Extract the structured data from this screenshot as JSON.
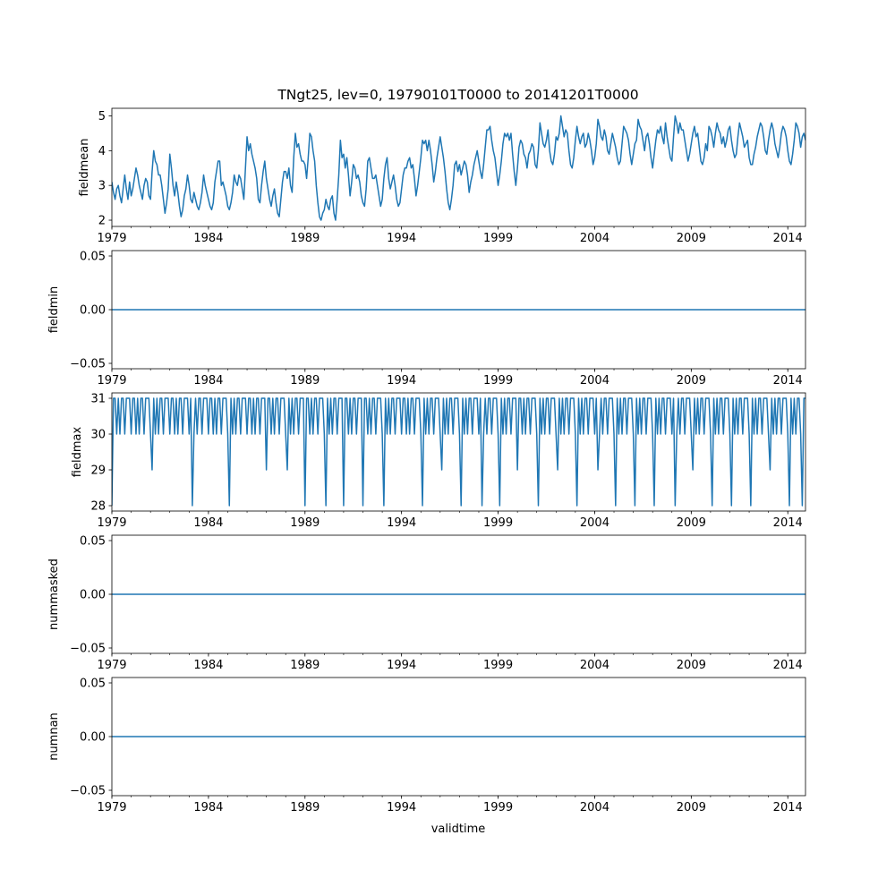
{
  "figure_title": "TNgt25, lev=0, 19790101T0000 to 20141201T0000",
  "xlabel": "validtime",
  "line_color": "#1f77b4",
  "x_ticks": [
    {
      "year": 1979,
      "label": "1979"
    },
    {
      "year": 1984,
      "label": "1984"
    },
    {
      "year": 1989,
      "label": "1989"
    },
    {
      "year": 1994,
      "label": "1994"
    },
    {
      "year": 1999,
      "label": "1999"
    },
    {
      "year": 2004,
      "label": "2004"
    },
    {
      "year": 2009,
      "label": "2009"
    },
    {
      "year": 2014,
      "label": "2014"
    }
  ],
  "chart_data": [
    {
      "type": "line",
      "ylabel": "fieldmean",
      "xlim": [
        "1979-01",
        "2014-12"
      ],
      "ylim": [
        1.82,
        5.22
      ],
      "yticks": [
        2,
        3,
        4,
        5
      ],
      "ytick_labels": [
        "2",
        "3",
        "4",
        "5"
      ],
      "series": [
        {
          "name": "fieldmean",
          "yearly_values": [
            [
              3.1,
              2.8,
              2.6,
              2.9,
              3.0,
              2.7,
              2.5,
              2.9,
              3.3,
              2.9,
              2.6,
              3.1
            ],
            [
              2.7,
              2.9,
              3.2,
              3.5,
              3.3,
              3.0,
              2.8,
              2.6,
              3.0,
              3.2,
              3.1,
              2.7
            ],
            [
              2.6,
              3.4,
              4.0,
              3.7,
              3.6,
              3.3,
              3.3,
              3.0,
              2.6,
              2.2,
              2.5,
              2.9
            ],
            [
              3.9,
              3.5,
              3.0,
              2.7,
              3.1,
              2.8,
              2.4,
              2.1,
              2.3,
              2.7,
              2.9,
              3.3
            ],
            [
              3.0,
              2.6,
              2.5,
              2.8,
              2.6,
              2.4,
              2.3,
              2.5,
              2.8,
              3.3,
              3.0,
              2.8
            ],
            [
              2.6,
              2.4,
              2.3,
              2.5,
              3.1,
              3.4,
              3.7,
              3.7,
              3.0,
              3.1,
              2.9,
              2.7
            ],
            [
              2.4,
              2.3,
              2.5,
              2.8,
              3.3,
              3.1,
              3.0,
              3.3,
              3.2,
              2.9,
              2.6,
              3.5
            ],
            [
              4.4,
              4.0,
              4.2,
              3.9,
              3.7,
              3.5,
              3.2,
              2.6,
              2.5,
              3.0,
              3.4,
              3.7
            ],
            [
              3.2,
              2.9,
              2.6,
              2.4,
              2.7,
              2.9,
              2.5,
              2.2,
              2.1,
              2.6,
              3.1,
              3.4
            ],
            [
              3.4,
              3.2,
              3.5,
              3.0,
              2.8,
              3.8,
              4.5,
              4.1,
              4.2,
              3.9,
              3.7,
              3.7
            ],
            [
              3.6,
              3.2,
              3.8,
              4.5,
              4.4,
              4.0,
              3.7,
              3.0,
              2.5,
              2.1,
              2.0,
              2.2
            ],
            [
              2.3,
              2.6,
              2.4,
              2.3,
              2.6,
              2.7,
              2.2,
              2.0,
              2.6,
              3.3,
              4.3,
              3.8
            ],
            [
              3.9,
              3.5,
              3.8,
              3.3,
              2.7,
              3.1,
              3.6,
              3.5,
              3.2,
              3.3,
              3.1,
              2.7
            ],
            [
              2.5,
              2.4,
              2.9,
              3.7,
              3.8,
              3.5,
              3.2,
              3.2,
              3.3,
              3.0,
              2.7,
              2.4
            ],
            [
              2.6,
              3.2,
              3.6,
              3.8,
              3.2,
              2.9,
              3.1,
              3.3,
              3.0,
              2.6,
              2.4,
              2.5
            ],
            [
              2.9,
              3.3,
              3.5,
              3.5,
              3.7,
              3.8,
              3.5,
              3.6,
              3.2,
              2.7,
              3.0,
              3.4
            ],
            [
              3.8,
              4.3,
              4.2,
              4.3,
              4.0,
              4.3,
              4.0,
              3.6,
              3.1,
              3.4,
              3.8,
              4.1
            ],
            [
              4.4,
              4.1,
              3.8,
              3.4,
              2.9,
              2.5,
              2.3,
              2.6,
              3.0,
              3.6,
              3.7,
              3.4
            ],
            [
              3.6,
              3.3,
              3.5,
              3.7,
              3.6,
              3.3,
              2.8,
              3.1,
              3.3,
              3.6,
              3.8,
              4.0
            ],
            [
              3.7,
              3.4,
              3.2,
              3.6,
              4.1,
              4.6,
              4.6,
              4.7,
              4.3,
              4.0,
              3.8,
              3.4
            ],
            [
              3.0,
              3.3,
              3.7,
              4.2,
              4.5,
              4.4,
              4.5,
              4.3,
              4.5,
              3.9,
              3.4,
              3.0
            ],
            [
              3.5,
              4.1,
              4.3,
              4.2,
              3.9,
              3.8,
              3.5,
              3.9,
              4.0,
              4.2,
              4.1,
              3.6
            ],
            [
              3.5,
              4.0,
              4.8,
              4.5,
              4.2,
              4.1,
              4.3,
              4.6,
              4.0,
              3.7,
              3.6,
              3.9
            ],
            [
              4.4,
              4.3,
              4.5,
              5.0,
              4.7,
              4.4,
              4.6,
              4.5,
              4.0,
              3.6,
              3.5,
              3.8
            ],
            [
              4.3,
              4.7,
              4.4,
              4.2,
              4.4,
              4.5,
              4.1,
              4.2,
              4.5,
              4.3,
              4.0,
              3.6
            ],
            [
              3.8,
              4.2,
              4.9,
              4.7,
              4.4,
              4.3,
              4.6,
              4.4,
              4.0,
              3.9,
              4.2,
              4.5
            ],
            [
              4.3,
              4.1,
              3.8,
              3.6,
              3.7,
              4.2,
              4.7,
              4.6,
              4.5,
              4.3,
              3.9,
              3.6
            ],
            [
              3.9,
              4.2,
              4.3,
              4.9,
              4.7,
              4.6,
              4.3,
              4.0,
              4.4,
              4.5,
              4.2,
              3.8
            ],
            [
              3.5,
              3.9,
              4.3,
              4.6,
              4.5,
              4.7,
              4.4,
              4.2,
              4.8,
              4.4,
              4.1,
              3.8
            ],
            [
              3.7,
              4.4,
              5.0,
              4.8,
              4.5,
              4.8,
              4.6,
              4.6,
              4.3,
              4.0,
              3.7,
              3.9
            ],
            [
              4.2,
              4.5,
              4.7,
              4.4,
              4.5,
              4.1,
              3.7,
              3.6,
              3.8,
              4.2,
              4.0,
              4.7
            ],
            [
              4.6,
              4.4,
              4.1,
              4.5,
              4.8,
              4.6,
              4.5,
              4.2,
              4.4,
              4.1,
              4.3,
              4.6
            ],
            [
              4.7,
              4.3,
              4.0,
              3.8,
              3.9,
              4.4,
              4.8,
              4.6,
              4.4,
              4.1,
              4.2,
              4.3
            ],
            [
              3.8,
              3.6,
              3.6,
              3.9,
              4.1,
              4.4,
              4.6,
              4.8,
              4.7,
              4.4,
              4.0,
              3.9
            ],
            [
              4.3,
              4.6,
              4.8,
              4.6,
              4.2,
              4.0,
              3.8,
              4.1,
              4.5,
              4.7,
              4.6,
              4.4
            ],
            [
              4.0,
              3.7,
              3.6,
              3.9,
              4.3,
              4.8,
              4.7,
              4.5,
              4.1,
              4.4,
              4.5,
              4.3
            ]
          ]
        }
      ]
    },
    {
      "type": "line",
      "ylabel": "fieldmin",
      "xlim": [
        "1979-01",
        "2014-12"
      ],
      "ylim": [
        -0.055,
        0.055
      ],
      "yticks": [
        -0.05,
        0.0,
        0.05
      ],
      "ytick_labels": [
        "−0.05",
        "0.00",
        "0.05"
      ],
      "series": [
        {
          "name": "fieldmin",
          "constant_value": 0.0
        }
      ]
    },
    {
      "type": "line",
      "ylabel": "fieldmax",
      "xlim": [
        "1979-01",
        "2014-12"
      ],
      "ylim": [
        27.85,
        31.15
      ],
      "yticks": [
        28,
        29,
        30,
        31
      ],
      "ytick_labels": [
        "28",
        "29",
        "30",
        "31"
      ],
      "series": [
        {
          "name": "fieldmax",
          "monthly_pattern": [
            30,
            31,
            31,
            30,
            31,
            30,
            31,
            31,
            30,
            31,
            31,
            31
          ],
          "dips": [
            {
              "date": "1979-01",
              "value": 28
            },
            {
              "date": "1981-02",
              "value": 29
            },
            {
              "date": "1983-03",
              "value": 28
            },
            {
              "date": "1985-02",
              "value": 28
            },
            {
              "date": "1987-01",
              "value": 29
            },
            {
              "date": "1988-02",
              "value": 29
            },
            {
              "date": "1989-01",
              "value": 28
            },
            {
              "date": "1990-02",
              "value": 28
            },
            {
              "date": "1991-01",
              "value": 28
            },
            {
              "date": "1992-01",
              "value": 28
            },
            {
              "date": "1993-02",
              "value": 28
            },
            {
              "date": "1995-02",
              "value": 28
            },
            {
              "date": "1996-02",
              "value": 29
            },
            {
              "date": "1997-02",
              "value": 28
            },
            {
              "date": "1998-03",
              "value": 28
            },
            {
              "date": "1999-02",
              "value": 28
            },
            {
              "date": "2000-01",
              "value": 29
            },
            {
              "date": "2001-02",
              "value": 28
            },
            {
              "date": "2002-02",
              "value": 29
            },
            {
              "date": "2003-02",
              "value": 28
            },
            {
              "date": "2004-03",
              "value": 29
            },
            {
              "date": "2005-02",
              "value": 28
            },
            {
              "date": "2006-02",
              "value": 28
            },
            {
              "date": "2007-02",
              "value": 28
            },
            {
              "date": "2008-03",
              "value": 28
            },
            {
              "date": "2009-02",
              "value": 29
            },
            {
              "date": "2010-02",
              "value": 28
            },
            {
              "date": "2011-02",
              "value": 28
            },
            {
              "date": "2012-02",
              "value": 28
            },
            {
              "date": "2013-02",
              "value": 29
            },
            {
              "date": "2014-02",
              "value": 28
            },
            {
              "date": "2014-10",
              "value": 28
            }
          ]
        }
      ]
    },
    {
      "type": "line",
      "ylabel": "nummasked",
      "xlim": [
        "1979-01",
        "2014-12"
      ],
      "ylim": [
        -0.055,
        0.055
      ],
      "yticks": [
        -0.05,
        0.0,
        0.05
      ],
      "ytick_labels": [
        "−0.05",
        "0.00",
        "0.05"
      ],
      "series": [
        {
          "name": "nummasked",
          "constant_value": 0.0
        }
      ]
    },
    {
      "type": "line",
      "ylabel": "numnan",
      "xlim": [
        "1979-01",
        "2014-12"
      ],
      "ylim": [
        -0.055,
        0.055
      ],
      "yticks": [
        -0.05,
        0.0,
        0.05
      ],
      "ytick_labels": [
        "−0.05",
        "0.00",
        "0.05"
      ],
      "series": [
        {
          "name": "numnan",
          "constant_value": 0.0
        }
      ]
    }
  ]
}
